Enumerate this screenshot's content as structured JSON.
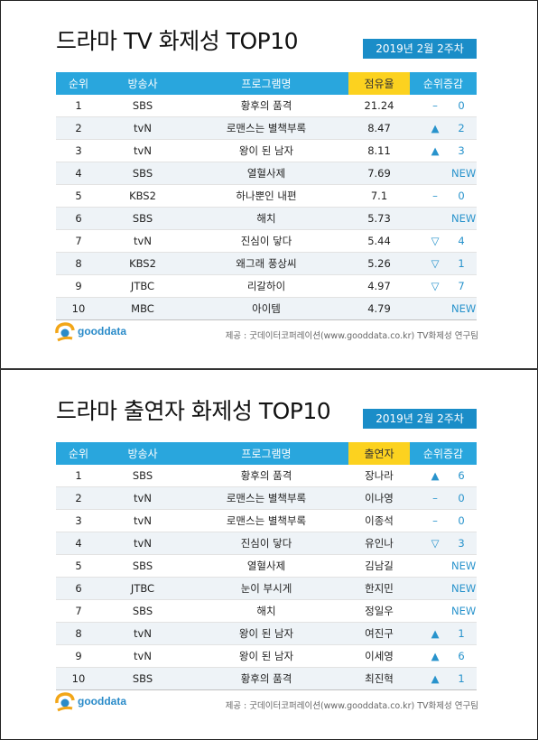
{
  "panel1": {
    "title": "드라마 TV 화제성 TOP10",
    "week": "2019년  2월 2주차",
    "headers": [
      "순위",
      "방송사",
      "프로그램명",
      "점유율",
      "순위증감"
    ],
    "rows": [
      {
        "rank": "1",
        "network": "SBS",
        "program": "황후의 품격",
        "value": "21.24",
        "ind": "–",
        "chg": "0"
      },
      {
        "rank": "2",
        "network": "tvN",
        "program": "로맨스는 별책부록",
        "value": "8.47",
        "ind": "▲",
        "chg": "2"
      },
      {
        "rank": "3",
        "network": "tvN",
        "program": "왕이 된 남자",
        "value": "8.11",
        "ind": "▲",
        "chg": "3"
      },
      {
        "rank": "4",
        "network": "SBS",
        "program": "열혈사제",
        "value": "7.69",
        "ind": "",
        "chg": "NEW"
      },
      {
        "rank": "5",
        "network": "KBS2",
        "program": "하나뿐인 내편",
        "value": "7.1",
        "ind": "–",
        "chg": "0"
      },
      {
        "rank": "6",
        "network": "SBS",
        "program": "해치",
        "value": "5.73",
        "ind": "",
        "chg": "NEW"
      },
      {
        "rank": "7",
        "network": "tvN",
        "program": "진심이 닿다",
        "value": "5.44",
        "ind": "▽",
        "chg": "4"
      },
      {
        "rank": "8",
        "network": "KBS2",
        "program": "왜그래 풍상씨",
        "value": "5.26",
        "ind": "▽",
        "chg": "1"
      },
      {
        "rank": "9",
        "network": "JTBC",
        "program": "리갈하이",
        "value": "4.97",
        "ind": "▽",
        "chg": "7"
      },
      {
        "rank": "10",
        "network": "MBC",
        "program": "아이템",
        "value": "4.79",
        "ind": "",
        "chg": "NEW"
      }
    ],
    "logo": "gooddata",
    "source": "제공 : 굿데이터코퍼레이션(www.gooddata.co.kr) TV화제성 연구팀"
  },
  "panel2": {
    "title": "드라마 출연자 화제성 TOP10",
    "week": "2019년  2월 2주차",
    "headers": [
      "순위",
      "방송사",
      "프로그램명",
      "출연자",
      "순위증감"
    ],
    "rows": [
      {
        "rank": "1",
        "network": "SBS",
        "program": "황후의 품격",
        "value": "장나라",
        "ind": "▲",
        "chg": "6"
      },
      {
        "rank": "2",
        "network": "tvN",
        "program": "로맨스는 별책부록",
        "value": "이나영",
        "ind": "–",
        "chg": "0"
      },
      {
        "rank": "3",
        "network": "tvN",
        "program": "로맨스는 별책부록",
        "value": "이종석",
        "ind": "–",
        "chg": "0"
      },
      {
        "rank": "4",
        "network": "tvN",
        "program": "진심이 닿다",
        "value": "유인나",
        "ind": "▽",
        "chg": "3"
      },
      {
        "rank": "5",
        "network": "SBS",
        "program": "열혈사제",
        "value": "김남길",
        "ind": "",
        "chg": "NEW"
      },
      {
        "rank": "6",
        "network": "JTBC",
        "program": "눈이 부시게",
        "value": "한지민",
        "ind": "",
        "chg": "NEW"
      },
      {
        "rank": "7",
        "network": "SBS",
        "program": "해치",
        "value": "정일우",
        "ind": "",
        "chg": "NEW"
      },
      {
        "rank": "8",
        "network": "tvN",
        "program": "왕이 된 남자",
        "value": "여진구",
        "ind": "▲",
        "chg": "1"
      },
      {
        "rank": "9",
        "network": "tvN",
        "program": "왕이 된 남자",
        "value": "이세영",
        "ind": "▲",
        "chg": "6"
      },
      {
        "rank": "10",
        "network": "SBS",
        "program": "황후의 품격",
        "value": "최진혁",
        "ind": "▲",
        "chg": "1"
      }
    ],
    "logo": "gooddata",
    "source": "제공 : 굿데이터코퍼레이션(www.gooddata.co.kr) TV화제성 연구팀"
  },
  "colors": {
    "header_blue": "#29a6dd",
    "highlight_yellow": "#fcd21f",
    "week_badge": "#1a8dc8",
    "change_text": "#2893cc",
    "stripe": "#eef3f7"
  }
}
